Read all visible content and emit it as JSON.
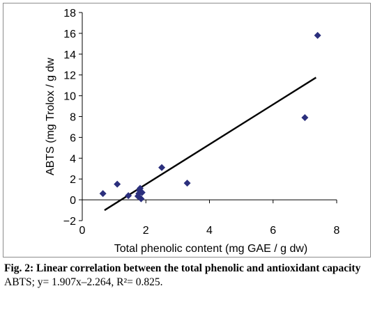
{
  "chart_data": {
    "type": "scatter",
    "xlabel": "Total phenolic content (mg GAE / g dw)",
    "ylabel": "ABTS (mg Trolox / g dw",
    "xlim": [
      0,
      8
    ],
    "ylim": [
      -2,
      18
    ],
    "xticks": [
      0,
      2,
      4,
      6,
      8
    ],
    "yticks": [
      -2,
      0,
      2,
      4,
      6,
      8,
      10,
      12,
      14,
      16,
      18
    ],
    "grid": false,
    "legend": "none",
    "marker_color": "#2b2f7d",
    "points": [
      {
        "x": 0.65,
        "y": 0.6
      },
      {
        "x": 1.1,
        "y": 1.5
      },
      {
        "x": 1.45,
        "y": 0.4
      },
      {
        "x": 1.75,
        "y": 0.35
      },
      {
        "x": 1.78,
        "y": 0.6
      },
      {
        "x": 1.8,
        "y": 0.9
      },
      {
        "x": 1.82,
        "y": 1.1
      },
      {
        "x": 1.85,
        "y": 0.1
      },
      {
        "x": 1.88,
        "y": 0.7
      },
      {
        "x": 2.5,
        "y": 3.1
      },
      {
        "x": 3.3,
        "y": 1.6
      },
      {
        "x": 7.0,
        "y": 7.9
      },
      {
        "x": 7.4,
        "y": 15.8
      }
    ],
    "trendline": {
      "x": [
        0.7,
        7.35
      ],
      "y": [
        -1.0,
        11.75
      ],
      "color": "#000000"
    }
  },
  "caption": {
    "title": "Fig. 2: Linear correlation between the total phenolic and antioxidant capacity",
    "equation": "ABTS; y= 1.907x–2.264, R²= 0.825."
  }
}
